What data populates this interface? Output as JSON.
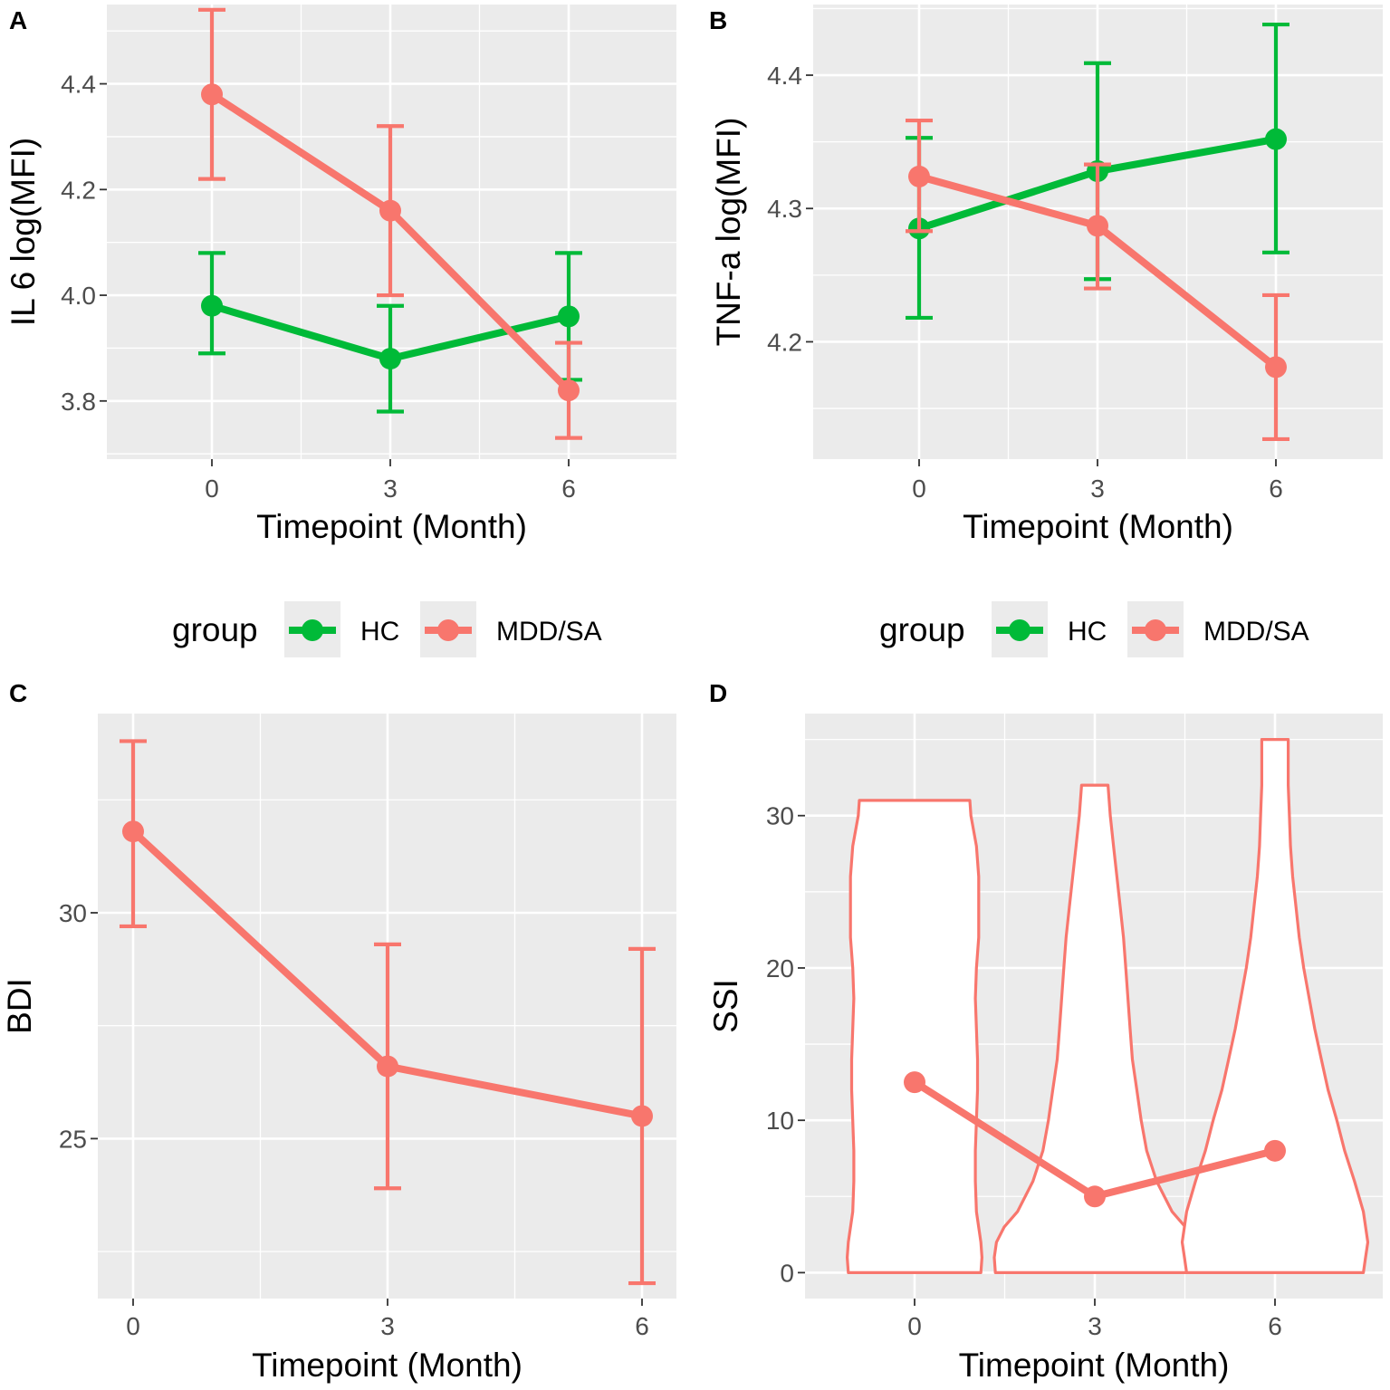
{
  "colors": {
    "HC": "#00BA38",
    "MDD/SA": "#F8766D",
    "panel": "#EBEBEB",
    "violin_fill": "#FFFFFF"
  },
  "legend": {
    "title": "group",
    "items": [
      {
        "name": "HC",
        "color": "#00BA38"
      },
      {
        "name": "MDD/SA",
        "color": "#F8766D"
      }
    ]
  },
  "chart_data": [
    {
      "panel": "A",
      "type": "line",
      "xlabel": "Timepoint (Month)",
      "ylabel": "IL 6 log(MFI)",
      "categories": [
        "0",
        "3",
        "6"
      ],
      "ylim": [
        3.69,
        4.55
      ],
      "yticks": [
        3.8,
        4.0,
        4.2,
        4.4
      ],
      "ytick_labels": [
        "3.8",
        "4.0",
        "4.2",
        "4.4"
      ],
      "series": [
        {
          "name": "HC",
          "values": [
            3.98,
            3.88,
            3.96
          ],
          "lower": [
            3.89,
            3.78,
            3.84
          ],
          "upper": [
            4.08,
            3.98,
            4.08
          ]
        },
        {
          "name": "MDD/SA",
          "values": [
            4.38,
            4.16,
            3.82
          ],
          "lower": [
            4.22,
            4.0,
            3.73
          ],
          "upper": [
            4.54,
            4.32,
            3.91
          ]
        }
      ]
    },
    {
      "panel": "B",
      "type": "line",
      "xlabel": "Timepoint (Month)",
      "ylabel": "TNF-a log(MFI)",
      "categories": [
        "0",
        "3",
        "6"
      ],
      "ylim": [
        4.112,
        4.453
      ],
      "yticks": [
        4.2,
        4.3,
        4.4
      ],
      "ytick_labels": [
        "4.2",
        "4.3",
        "4.4"
      ],
      "series": [
        {
          "name": "HC",
          "values": [
            4.285,
            4.328,
            4.352
          ],
          "lower": [
            4.218,
            4.247,
            4.267
          ],
          "upper": [
            4.353,
            4.409,
            4.438
          ]
        },
        {
          "name": "MDD/SA",
          "values": [
            4.324,
            4.287,
            4.181
          ],
          "lower": [
            4.283,
            4.24,
            4.127
          ],
          "upper": [
            4.366,
            4.333,
            4.235
          ]
        }
      ]
    },
    {
      "panel": "C",
      "type": "line",
      "xlabel": "Timepoint (Month)",
      "ylabel": "BDI",
      "categories": [
        "0",
        "3",
        "6"
      ],
      "ylim": [
        21.46,
        34.41
      ],
      "yticks": [
        25,
        30
      ],
      "ytick_labels": [
        "25",
        "30"
      ],
      "series": [
        {
          "name": "MDD/SA",
          "values": [
            31.8,
            26.6,
            25.5
          ],
          "lower": [
            29.7,
            23.9,
            21.8
          ],
          "upper": [
            33.8,
            29.3,
            29.2
          ]
        }
      ]
    },
    {
      "panel": "D",
      "type": "violin",
      "xlabel": "Timepoint (Month)",
      "ylabel": "SSI",
      "categories": [
        "0",
        "3",
        "6"
      ],
      "ylim": [
        -1.7,
        36.7
      ],
      "yticks": [
        0,
        10,
        20,
        30
      ],
      "ytick_labels": [
        "0",
        "10",
        "20",
        "30"
      ],
      "violins": [
        {
          "x": "0",
          "min": 0,
          "max": 31,
          "profile": [
            [
              0,
              0.6
            ],
            [
              1,
              0.61
            ],
            [
              2,
              0.6
            ],
            [
              4,
              0.56
            ],
            [
              6,
              0.55
            ],
            [
              8,
              0.55
            ],
            [
              10,
              0.56
            ],
            [
              12,
              0.57
            ],
            [
              14,
              0.57
            ],
            [
              16,
              0.56
            ],
            [
              18,
              0.55
            ],
            [
              20,
              0.56
            ],
            [
              22,
              0.58
            ],
            [
              24,
              0.58
            ],
            [
              26,
              0.58
            ],
            [
              28,
              0.56
            ],
            [
              30,
              0.51
            ],
            [
              31,
              0.5
            ]
          ]
        },
        {
          "x": "3",
          "min": 0,
          "max": 32,
          "profile": [
            [
              0,
              0.9
            ],
            [
              1,
              0.91
            ],
            [
              2,
              0.89
            ],
            [
              3,
              0.82
            ],
            [
              4,
              0.7
            ],
            [
              6,
              0.56
            ],
            [
              8,
              0.47
            ],
            [
              10,
              0.42
            ],
            [
              12,
              0.38
            ],
            [
              14,
              0.34
            ],
            [
              16,
              0.32
            ],
            [
              18,
              0.3
            ],
            [
              20,
              0.28
            ],
            [
              22,
              0.26
            ],
            [
              24,
              0.23
            ],
            [
              26,
              0.2
            ],
            [
              28,
              0.17
            ],
            [
              30,
              0.14
            ],
            [
              32,
              0.12
            ]
          ]
        },
        {
          "x": "6",
          "min": 0,
          "max": 35,
          "profile": [
            [
              0,
              0.8
            ],
            [
              1,
              0.82
            ],
            [
              2,
              0.84
            ],
            [
              4,
              0.8
            ],
            [
              6,
              0.72
            ],
            [
              8,
              0.63
            ],
            [
              10,
              0.56
            ],
            [
              12,
              0.48
            ],
            [
              14,
              0.42
            ],
            [
              16,
              0.36
            ],
            [
              18,
              0.31
            ],
            [
              20,
              0.26
            ],
            [
              22,
              0.22
            ],
            [
              24,
              0.19
            ],
            [
              26,
              0.16
            ],
            [
              28,
              0.14
            ],
            [
              30,
              0.13
            ],
            [
              32,
              0.12
            ],
            [
              35,
              0.12
            ]
          ]
        }
      ],
      "series": [
        {
          "name": "MDD/SA",
          "values": [
            12.5,
            5.0,
            8.0
          ]
        }
      ]
    }
  ]
}
